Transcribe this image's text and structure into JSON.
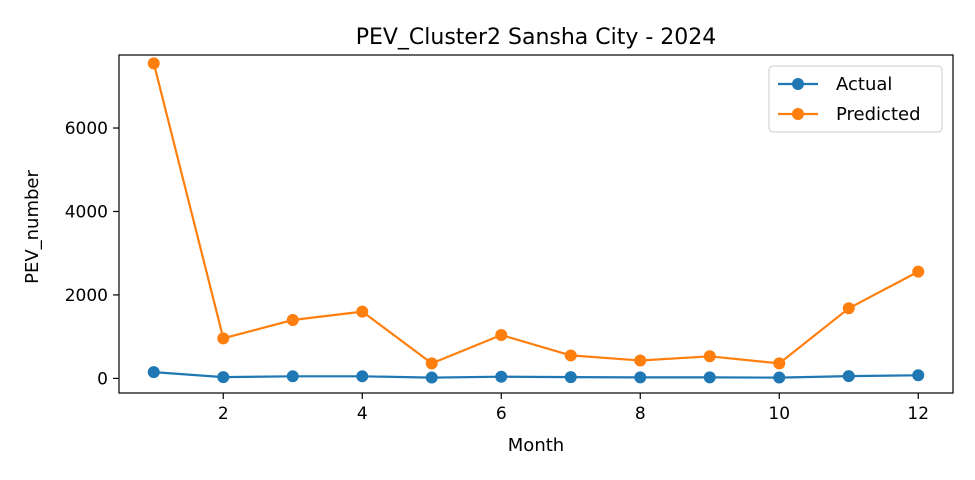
{
  "chart_data": {
    "type": "line",
    "title": "PEV_Cluster2 Sansha City - 2024",
    "xlabel": "Month",
    "ylabel": "PEV_number",
    "xlim": [
      0.5,
      12.5
    ],
    "ylim": [
      -350,
      7750
    ],
    "xticks": [
      2,
      4,
      6,
      8,
      10,
      12
    ],
    "yticks": [
      0,
      2000,
      4000,
      6000
    ],
    "grid": false,
    "legend_position": "upper right",
    "x": [
      1,
      2,
      3,
      4,
      5,
      6,
      7,
      8,
      9,
      10,
      11,
      12
    ],
    "series": [
      {
        "name": "Actual",
        "color": "#1f77b4",
        "values": [
          150,
          30,
          50,
          50,
          20,
          40,
          30,
          25,
          25,
          20,
          55,
          75
        ]
      },
      {
        "name": "Predicted",
        "color": "#ff7f0e",
        "values": [
          7550,
          960,
          1400,
          1600,
          360,
          1040,
          550,
          430,
          530,
          360,
          1680,
          2560
        ]
      }
    ]
  }
}
